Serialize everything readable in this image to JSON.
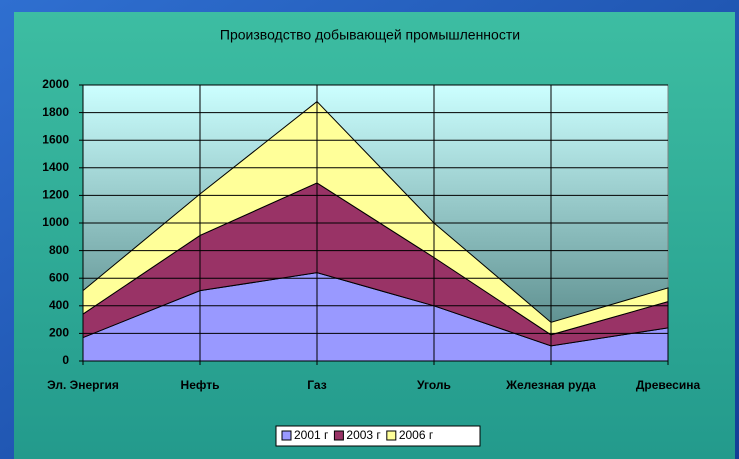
{
  "chart_data": {
    "type": "stacked_area",
    "title": "Производство добывающей промышленности",
    "categories": [
      "Эл. Энергия",
      "Нефть",
      "Газ",
      "Уголь",
      "Железная руда",
      "Древесина"
    ],
    "series": [
      {
        "name": "2001 г",
        "color": "#9999ff",
        "values": [
          170,
          510,
          640,
          400,
          110,
          240
        ]
      },
      {
        "name": "2003 г",
        "color": "#993366",
        "values": [
          170,
          400,
          650,
          350,
          80,
          190
        ]
      },
      {
        "name": "2006 г",
        "color": "#ffff99",
        "values": [
          170,
          300,
          590,
          250,
          90,
          100
        ]
      }
    ],
    "ylim": [
      0,
      2000
    ],
    "yticks": [
      0,
      200,
      400,
      600,
      800,
      1000,
      1200,
      1400,
      1600,
      1800,
      2000
    ],
    "grid": true,
    "legend": "bottom"
  }
}
